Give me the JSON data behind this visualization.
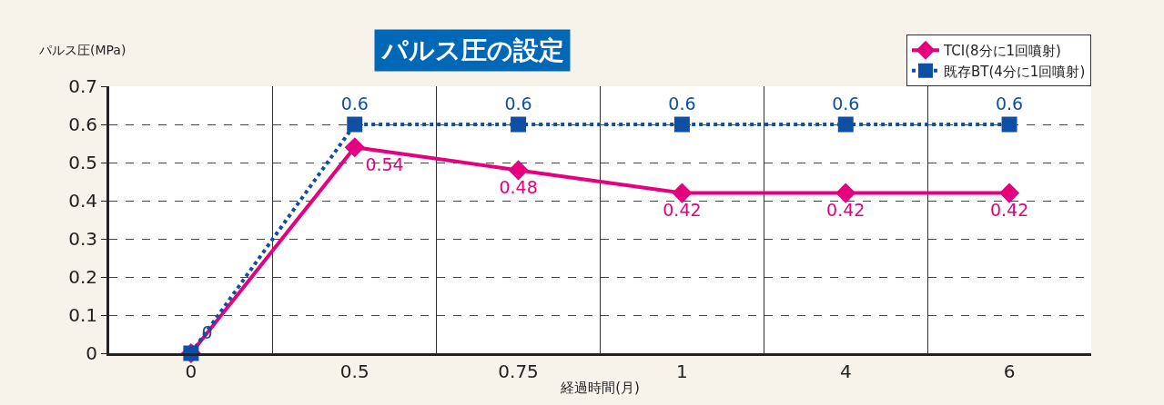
{
  "chart_data": {
    "type": "line",
    "title": "パルス圧の設定",
    "xlabel": "経過時間(月)",
    "ylabel": "パルス圧(MPa)",
    "categories": [
      "0",
      "0.5",
      "0.75",
      "1",
      "4",
      "6"
    ],
    "series": [
      {
        "name": "TCI(8分に1回噴射)",
        "color": "#e5007f",
        "values": [
          0,
          0.54,
          0.48,
          0.42,
          0.42,
          0.42
        ],
        "marker": "diamond",
        "line_style": "solid",
        "value_labels": [
          null,
          "0.54",
          "0.48",
          "0.42",
          "0.42",
          "0.42"
        ]
      },
      {
        "name": "既存BT(4分に1回噴射)",
        "color": "#0e4fa3",
        "values": [
          0,
          0.6,
          0.6,
          0.6,
          0.6,
          0.6
        ],
        "marker": "square",
        "line_style": "dotted",
        "value_labels": [
          "0",
          "0.6",
          "0.6",
          "0.6",
          "0.6",
          "0.6"
        ]
      }
    ],
    "ylim": [
      0,
      0.7
    ],
    "yticks": [
      0,
      0.1,
      0.2,
      0.3,
      0.4,
      0.5,
      0.6,
      0.7
    ],
    "grid": true,
    "legend": "top right"
  }
}
